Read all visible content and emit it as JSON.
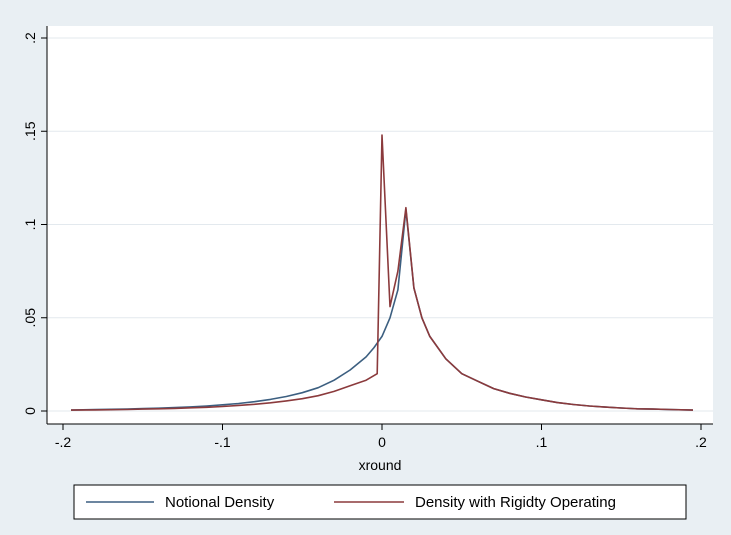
{
  "chart_data": {
    "type": "line",
    "title": "",
    "xlabel": "xround",
    "ylabel": "",
    "xlim": [
      -0.2,
      0.2
    ],
    "ylim": [
      0,
      0.2
    ],
    "xticks": [
      -0.2,
      -0.1,
      0,
      0.1,
      0.2
    ],
    "xtick_labels": [
      "-.2",
      "-.1",
      "0",
      ".1",
      ".2"
    ],
    "yticks": [
      0,
      0.05,
      0.1,
      0.15,
      0.2
    ],
    "ytick_labels": [
      "0",
      ".05",
      ".1",
      ".15",
      ".2"
    ],
    "grid": "horizontal",
    "legend_position": "bottom",
    "series": [
      {
        "name": "Notional Density",
        "color": "#3c5f80",
        "points": [
          [
            -0.195,
            0.0005
          ],
          [
            -0.18,
            0.0008
          ],
          [
            -0.16,
            0.001
          ],
          [
            -0.15,
            0.0013
          ],
          [
            -0.14,
            0.0015
          ],
          [
            -0.13,
            0.0018
          ],
          [
            -0.12,
            0.0022
          ],
          [
            -0.11,
            0.0027
          ],
          [
            -0.1,
            0.0033
          ],
          [
            -0.09,
            0.004
          ],
          [
            -0.08,
            0.005
          ],
          [
            -0.07,
            0.0062
          ],
          [
            -0.06,
            0.0078
          ],
          [
            -0.05,
            0.0098
          ],
          [
            -0.04,
            0.0125
          ],
          [
            -0.03,
            0.0165
          ],
          [
            -0.02,
            0.022
          ],
          [
            -0.01,
            0.029
          ],
          [
            -0.005,
            0.034
          ],
          [
            0.0,
            0.04
          ],
          [
            0.005,
            0.05
          ],
          [
            0.01,
            0.065
          ],
          [
            0.015,
            0.108
          ],
          [
            0.02,
            0.066
          ],
          [
            0.025,
            0.05
          ],
          [
            0.03,
            0.04
          ],
          [
            0.04,
            0.028
          ],
          [
            0.05,
            0.02
          ],
          [
            0.06,
            0.016
          ],
          [
            0.07,
            0.012
          ],
          [
            0.08,
            0.0095
          ],
          [
            0.09,
            0.0075
          ],
          [
            0.1,
            0.006
          ],
          [
            0.11,
            0.0045
          ],
          [
            0.12,
            0.0035
          ],
          [
            0.13,
            0.0027
          ],
          [
            0.14,
            0.0021
          ],
          [
            0.15,
            0.0016
          ],
          [
            0.16,
            0.0012
          ],
          [
            0.17,
            0.001
          ],
          [
            0.18,
            0.0008
          ],
          [
            0.195,
            0.0005
          ]
        ]
      },
      {
        "name": "Density with Rigidty Operating",
        "color": "#8b3a3c",
        "points": [
          [
            -0.195,
            0.0005
          ],
          [
            -0.18,
            0.0006
          ],
          [
            -0.16,
            0.0008
          ],
          [
            -0.15,
            0.001
          ],
          [
            -0.14,
            0.0012
          ],
          [
            -0.13,
            0.0014
          ],
          [
            -0.12,
            0.0017
          ],
          [
            -0.11,
            0.002
          ],
          [
            -0.1,
            0.0024
          ],
          [
            -0.09,
            0.003
          ],
          [
            -0.08,
            0.0036
          ],
          [
            -0.07,
            0.0044
          ],
          [
            -0.06,
            0.0054
          ],
          [
            -0.05,
            0.0066
          ],
          [
            -0.04,
            0.0082
          ],
          [
            -0.03,
            0.0105
          ],
          [
            -0.02,
            0.0135
          ],
          [
            -0.01,
            0.0165
          ],
          [
            -0.005,
            0.019
          ],
          [
            -0.003,
            0.02
          ],
          [
            0.0,
            0.148
          ],
          [
            0.005,
            0.056
          ],
          [
            0.01,
            0.075
          ],
          [
            0.015,
            0.109
          ],
          [
            0.02,
            0.066
          ],
          [
            0.025,
            0.05
          ],
          [
            0.03,
            0.04
          ],
          [
            0.04,
            0.028
          ],
          [
            0.05,
            0.02
          ],
          [
            0.06,
            0.016
          ],
          [
            0.07,
            0.012
          ],
          [
            0.08,
            0.0095
          ],
          [
            0.09,
            0.0075
          ],
          [
            0.1,
            0.006
          ],
          [
            0.11,
            0.0045
          ],
          [
            0.12,
            0.0035
          ],
          [
            0.13,
            0.0027
          ],
          [
            0.14,
            0.0021
          ],
          [
            0.15,
            0.0016
          ],
          [
            0.16,
            0.0012
          ],
          [
            0.17,
            0.001
          ],
          [
            0.18,
            0.0008
          ],
          [
            0.195,
            0.0005
          ]
        ]
      }
    ]
  }
}
